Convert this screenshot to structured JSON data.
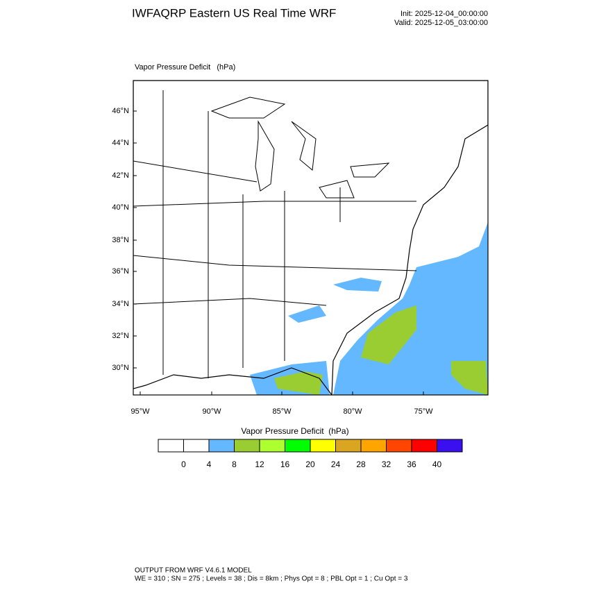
{
  "header": {
    "title": "IWFAQRP Eastern US Real Time WRF",
    "init": "Init: 2025-12-04_00:00:00",
    "valid": "Valid: 2025-12-05_03:00:00"
  },
  "map": {
    "label": "Vapor Pressure Deficit   (hPa)",
    "lat_ticks": [
      "46°N",
      "44°N",
      "42°N",
      "40°N",
      "38°N",
      "36°N",
      "34°N",
      "32°N",
      "30°N"
    ],
    "lon_ticks": [
      "95°W",
      "90°W",
      "85°W",
      "80°W",
      "75°W"
    ]
  },
  "colorbar": {
    "title": "Vapor Pressure Deficit  (hPa)",
    "colors": [
      "#ffffff",
      "#ffffff",
      "#63b8ff",
      "#9acd32",
      "#adff2f",
      "#00ff00",
      "#ffff00",
      "#daa520",
      "#ffa500",
      "#ff4500",
      "#ff0000",
      "#3a10f0"
    ],
    "ticks": [
      0,
      4,
      8,
      12,
      16,
      20,
      24,
      28,
      32,
      36,
      40
    ]
  },
  "footer": {
    "line1": "OUTPUT FROM WRF V4.6.1 MODEL",
    "line2": "WE = 310 ; SN = 275 ; Levels = 38 ; Dis = 8km ; Phys Opt = 8 ; PBL Opt = 1 ; Cu Opt = 3"
  }
}
